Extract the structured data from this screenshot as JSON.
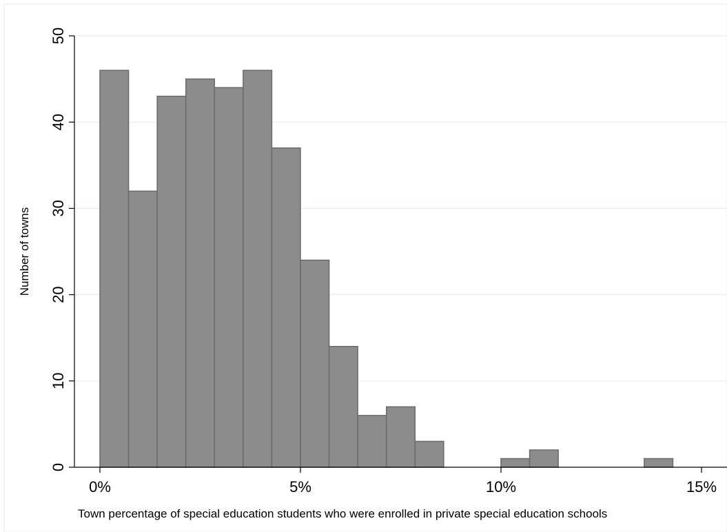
{
  "chart_data": {
    "type": "bar",
    "title": "",
    "xlabel": "Town percentage of special education students who were enrolled in private special education schools",
    "ylabel": "Number of towns",
    "bin_width": 0.7143,
    "bins": [
      {
        "start": 0.0,
        "end": 0.7143,
        "count": 46
      },
      {
        "start": 0.7143,
        "end": 1.4286,
        "count": 32
      },
      {
        "start": 1.4286,
        "end": 2.1429,
        "count": 43
      },
      {
        "start": 2.1429,
        "end": 2.8571,
        "count": 45
      },
      {
        "start": 2.8571,
        "end": 3.5714,
        "count": 44
      },
      {
        "start": 3.5714,
        "end": 4.2857,
        "count": 46
      },
      {
        "start": 4.2857,
        "end": 5.0,
        "count": 37
      },
      {
        "start": 5.0,
        "end": 5.7143,
        "count": 24
      },
      {
        "start": 5.7143,
        "end": 6.4286,
        "count": 14
      },
      {
        "start": 6.4286,
        "end": 7.1429,
        "count": 6
      },
      {
        "start": 7.1429,
        "end": 7.8571,
        "count": 7
      },
      {
        "start": 7.8571,
        "end": 8.5714,
        "count": 3
      },
      {
        "start": 9.9999,
        "end": 10.7143,
        "count": 1
      },
      {
        "start": 10.7143,
        "end": 11.4286,
        "count": 2
      },
      {
        "start": 13.5714,
        "end": 14.2857,
        "count": 1
      }
    ],
    "xlim": [
      -0.5,
      15.05
    ],
    "ylim": [
      0,
      50
    ],
    "x_ticks": [
      {
        "value": 0,
        "label": "0%"
      },
      {
        "value": 5,
        "label": "5%"
      },
      {
        "value": 10,
        "label": "10%"
      },
      {
        "value": 15,
        "label": "15%"
      }
    ],
    "y_ticks": [
      {
        "value": 0,
        "label": "0"
      },
      {
        "value": 10,
        "label": "10"
      },
      {
        "value": 20,
        "label": "20"
      },
      {
        "value": 30,
        "label": "30"
      },
      {
        "value": 40,
        "label": "40"
      },
      {
        "value": 50,
        "label": "50"
      }
    ],
    "grid": true,
    "legend": "none",
    "colors": {
      "bar_fill": "#8c8c8c",
      "bar_stroke": "#6a6a6a",
      "grid": "#e6eef1",
      "axis": "#000000"
    }
  }
}
